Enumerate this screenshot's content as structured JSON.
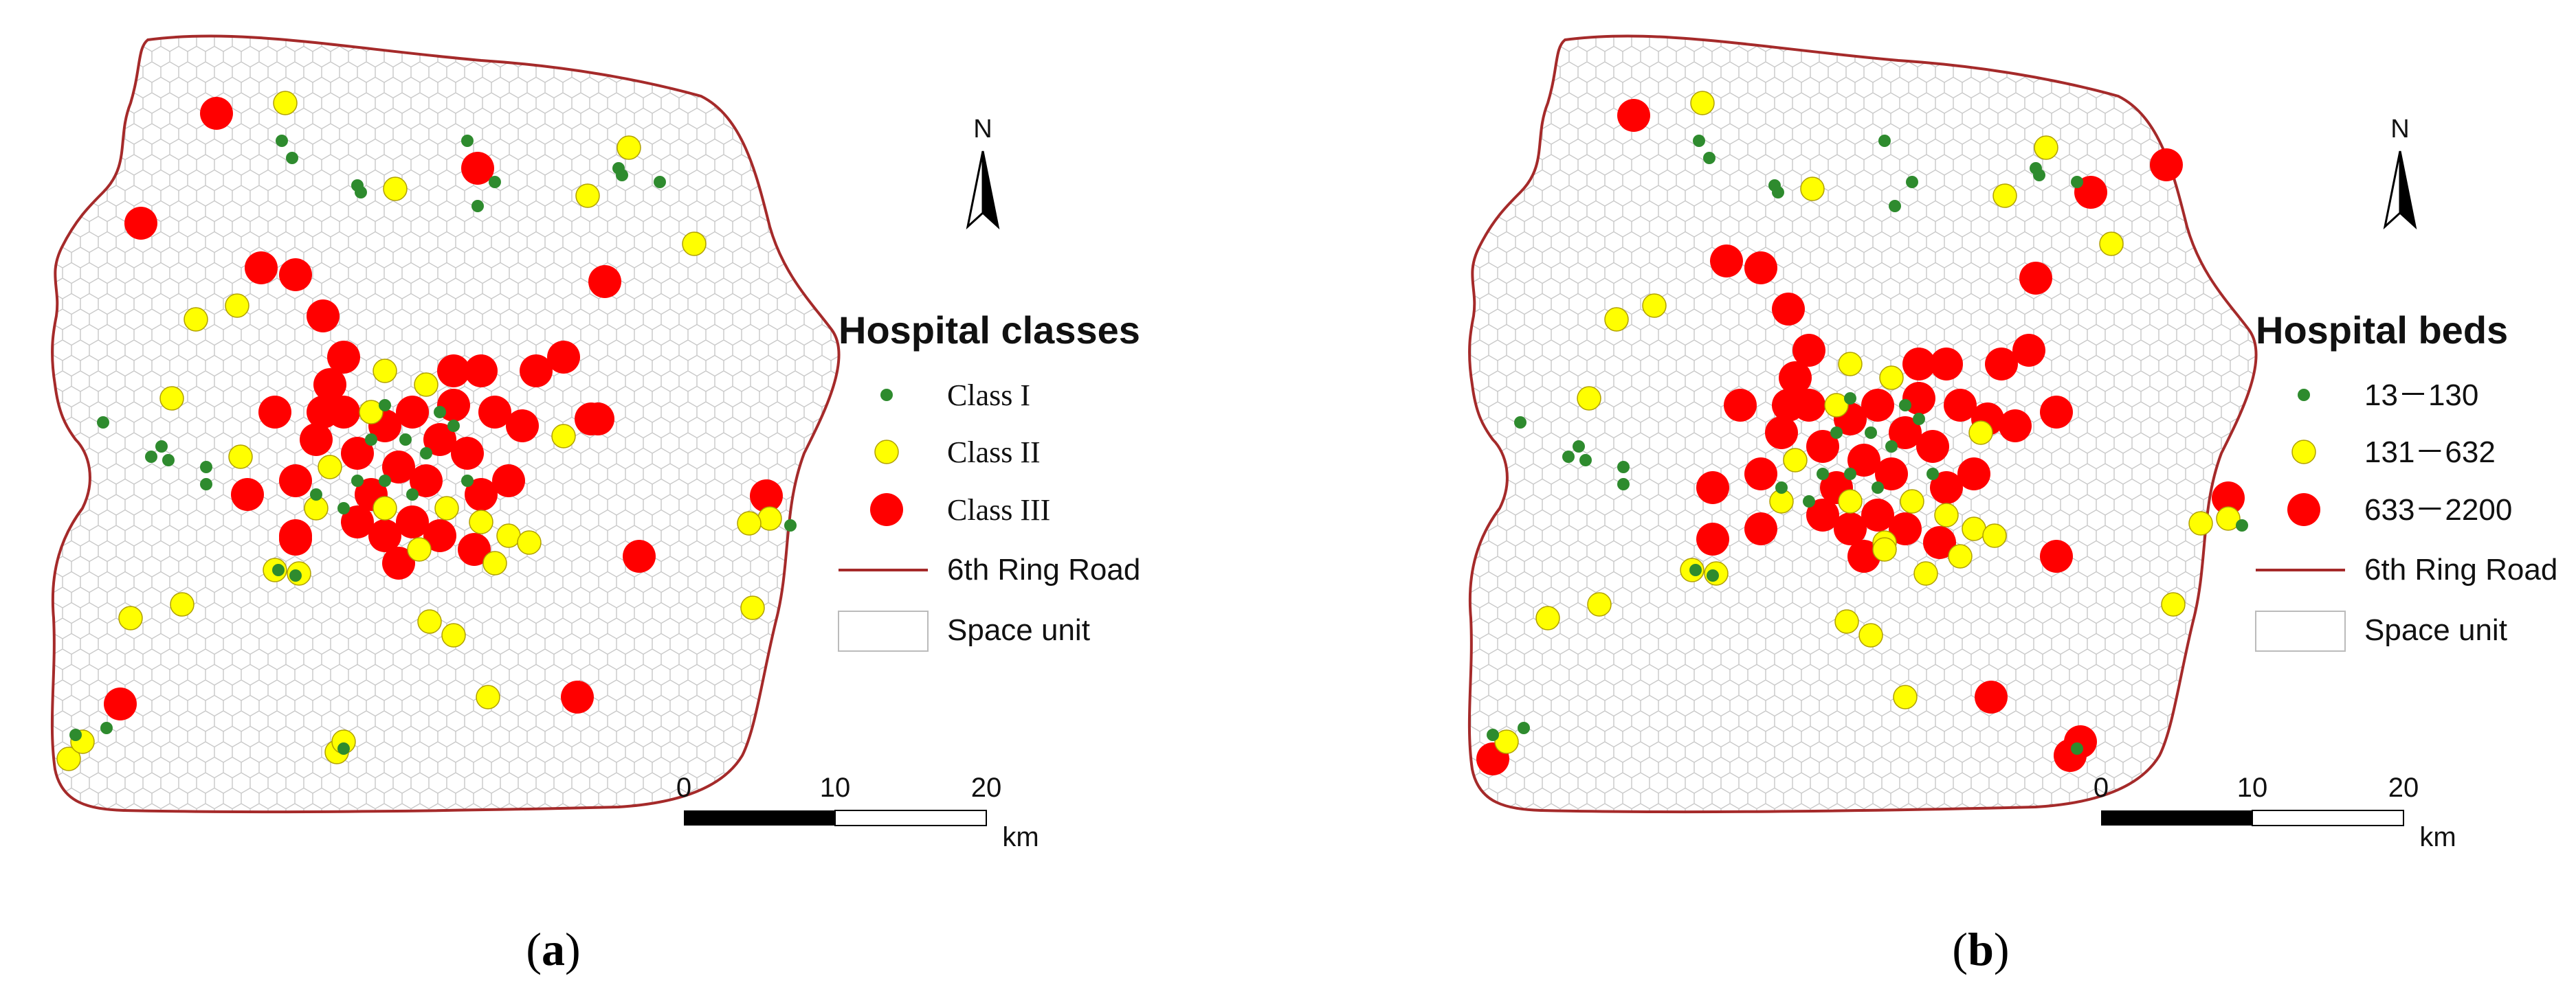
{
  "panels": [
    {
      "caption_prefix": "(",
      "caption_letter": "a",
      "caption_suffix": ")",
      "north_label": "N",
      "legend": {
        "title": "Hospital classes",
        "items": [
          "Class I",
          "Class II",
          "Class III"
        ],
        "road_label": "6th Ring Road",
        "unit_label": "Space unit"
      },
      "scale": {
        "ticks": [
          "0",
          "10",
          "20"
        ],
        "unit": "km"
      }
    },
    {
      "caption_prefix": "(",
      "caption_letter": "b",
      "caption_suffix": ")",
      "north_label": "N",
      "legend": {
        "title": "Hospital beds",
        "items": [
          "13－130",
          "131－632",
          "633－2200"
        ],
        "road_label": "6th Ring Road",
        "unit_label": "Space unit"
      },
      "scale": {
        "ticks": [
          "0",
          "10",
          "20"
        ],
        "unit": "km"
      }
    }
  ],
  "colors": {
    "small": "#2e8b2e",
    "medium": "#ffff00",
    "large": "#ff0000",
    "road": "#a52a2a",
    "grid": "#c8c8c8"
  }
}
